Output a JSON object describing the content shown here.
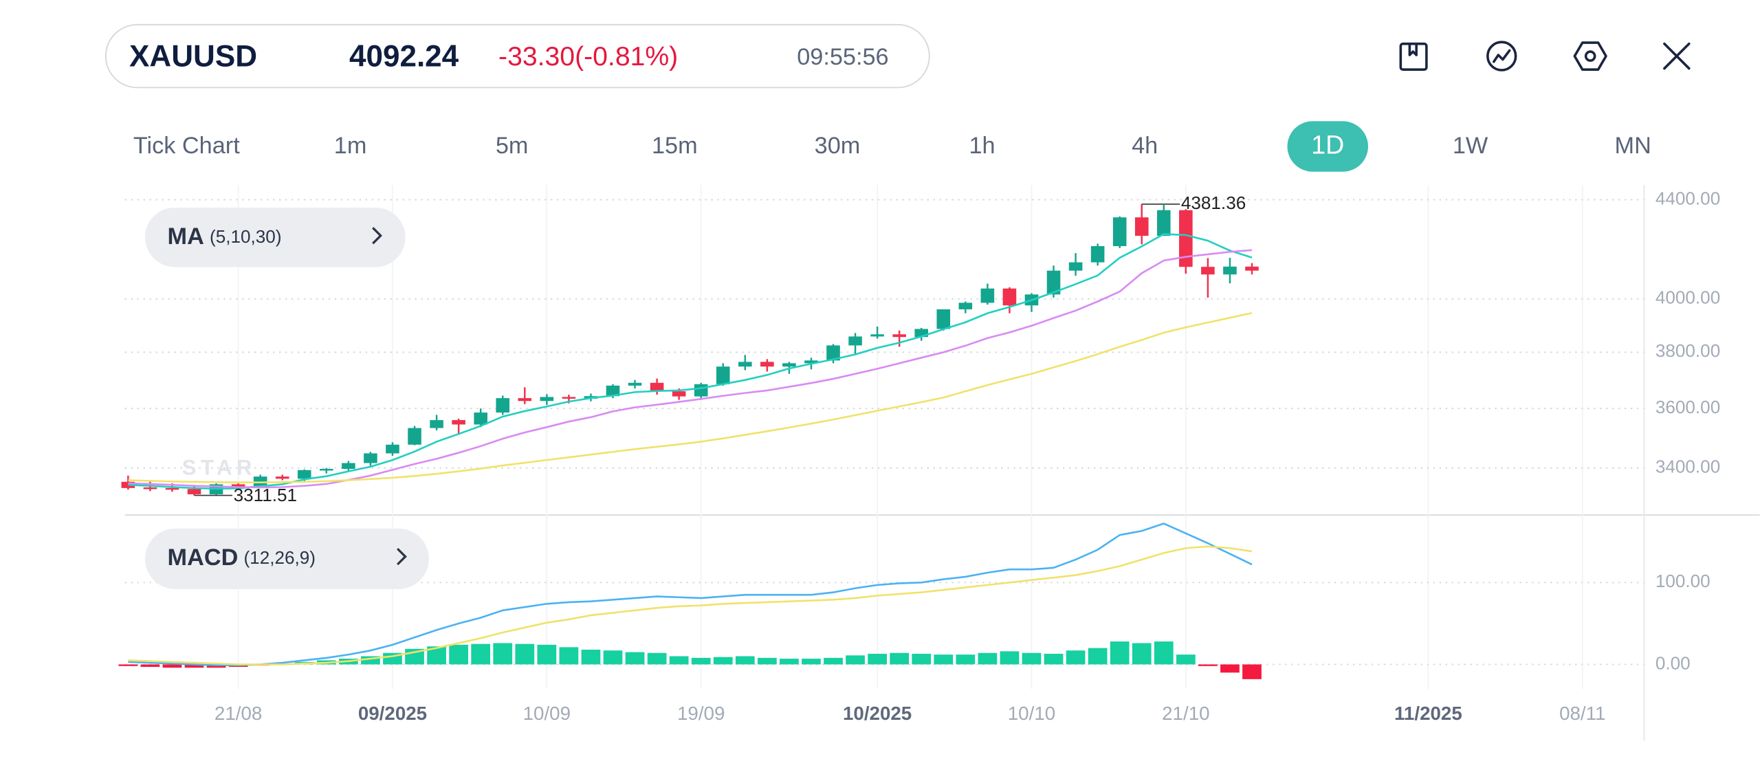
{
  "header": {
    "symbol": "XAUUSD",
    "price": "4092.24",
    "change": "-33.30(-0.81%)",
    "time": "09:55:56"
  },
  "timeframes": [
    "Tick Chart",
    "1m",
    "5m",
    "15m",
    "30m",
    "1h",
    "4h",
    "1D",
    "1W",
    "MN"
  ],
  "selected": "1D",
  "chart_data": [
    {
      "type": "candlestick",
      "watermark": "STAR",
      "name": "MA",
      "params": "(5,10,30)",
      "log": true,
      "grid": true,
      "up_color": "#14a58f",
      "down_color": "#f0304c",
      "ylim": [
        3253,
        4462
      ],
      "yticks": [
        {
          "value": 3400,
          "label": "3400.00"
        },
        {
          "value": 3600,
          "label": "3600.00"
        },
        {
          "value": 3800,
          "label": "3800.00"
        },
        {
          "value": 4000,
          "label": "4000.00"
        },
        {
          "value": 4400,
          "label": "4400.00"
        }
      ],
      "xlim": [
        -0.15,
        68.8
      ],
      "xticks": [
        {
          "value": 5,
          "label": "21/08"
        },
        {
          "value": 12,
          "label": "09/2025"
        },
        {
          "value": 19,
          "label": "10/09"
        },
        {
          "value": 26,
          "label": "19/09"
        },
        {
          "value": 34,
          "label": "10/2025"
        },
        {
          "value": 41,
          "label": "10/10"
        },
        {
          "value": 48,
          "label": "21/10"
        },
        {
          "value": 59,
          "label": "11/2025"
        },
        {
          "value": 66,
          "label": "08/11"
        }
      ],
      "open": [
        3355,
        3337,
        3335,
        3332,
        3315,
        3347,
        3338,
        3372,
        3365,
        3393,
        3397,
        3416,
        3448,
        3477,
        3533,
        3560,
        3545,
        3586,
        3636,
        3626,
        3640,
        3634,
        3643,
        3680,
        3690,
        3660,
        3642,
        3685,
        3748,
        3765,
        3748,
        3760,
        3770,
        3825,
        3858,
        3866,
        3856,
        3886,
        3960,
        3985,
        4040,
        3975,
        4017,
        4110,
        4143,
        4208,
        4326,
        4250,
        4356,
        4125,
        4095,
        4126
      ],
      "high": [
        3375,
        3358,
        3350,
        3345,
        3350,
        3350,
        3378,
        3378,
        3395,
        3400,
        3423,
        3453,
        3485,
        3540,
        3578,
        3565,
        3600,
        3645,
        3674,
        3650,
        3648,
        3652,
        3685,
        3700,
        3705,
        3670,
        3690,
        3760,
        3790,
        3775,
        3765,
        3780,
        3830,
        3871,
        3895,
        3880,
        3890,
        3960,
        3990,
        4059,
        4045,
        4022,
        4130,
        4180,
        4218,
        4330,
        4381.36,
        4378,
        4360,
        4160,
        4161,
        4140
      ],
      "low": [
        3330,
        3325,
        3323,
        3311.51,
        3312,
        3332,
        3335,
        3360,
        3352,
        3382,
        3390,
        3405,
        3440,
        3475,
        3525,
        3510,
        3536,
        3578,
        3615,
        3612,
        3618,
        3625,
        3636,
        3670,
        3648,
        3630,
        3630,
        3680,
        3735,
        3730,
        3722,
        3738,
        3760,
        3792,
        3850,
        3820,
        3842,
        3880,
        3945,
        3978,
        3945,
        3950,
        4005,
        4090,
        4130,
        4200,
        4215,
        4250,
        4098,
        4005,
        4060,
        4095
      ],
      "close": [
        3335,
        3336,
        3332,
        3315,
        3347,
        3338,
        3372,
        3365,
        3393,
        3397,
        3416,
        3448,
        3477,
        3533,
        3560,
        3545,
        3586,
        3636,
        3626,
        3640,
        3634,
        3643,
        3680,
        3690,
        3660,
        3642,
        3685,
        3748,
        3765,
        3748,
        3760,
        3770,
        3825,
        3858,
        3866,
        3856,
        3886,
        3960,
        3985,
        4040,
        3975,
        4017,
        4110,
        4143,
        4208,
        4326,
        4250,
        4356,
        4125,
        4095,
        4126,
        4110
      ],
      "series": [
        {
          "color": "#22cfc0",
          "values": [
            3345,
            3342,
            3338,
            3335,
            3333,
            3334,
            3341,
            3347,
            3363,
            3373,
            3389,
            3404,
            3426,
            3454,
            3487,
            3513,
            3540,
            3572,
            3591,
            3607,
            3624,
            3636,
            3645,
            3657,
            3661,
            3663,
            3671,
            3685,
            3700,
            3718,
            3741,
            3758,
            3774,
            3792,
            3816,
            3835,
            3858,
            3885,
            3911,
            3945,
            3969,
            3995,
            4025,
            4057,
            4091,
            4161,
            4207,
            4257,
            4253,
            4230,
            4190,
            4162
          ]
        },
        {
          "color": "#d98af2",
          "values": [
            3350,
            3348,
            3345,
            3342,
            3340,
            3338,
            3337,
            3338,
            3342,
            3348,
            3361,
            3375,
            3394,
            3413,
            3430,
            3450,
            3472,
            3497,
            3518,
            3536,
            3555,
            3570,
            3590,
            3604,
            3613,
            3623,
            3633,
            3644,
            3654,
            3663,
            3676,
            3689,
            3704,
            3722,
            3740,
            3760,
            3780,
            3800,
            3824,
            3852,
            3873,
            3898,
            3927,
            3955,
            3990,
            4028,
            4100,
            4150,
            4165,
            4175,
            4185,
            4192
          ]
        },
        {
          "color": "#f0e26a",
          "values": [
            3360,
            3358,
            3356,
            3355,
            3354,
            3353,
            3353,
            3354,
            3355,
            3357,
            3360,
            3364,
            3368,
            3374,
            3381,
            3389,
            3398,
            3408,
            3417,
            3426,
            3435,
            3444,
            3453,
            3462,
            3470,
            3478,
            3487,
            3498,
            3510,
            3522,
            3535,
            3548,
            3562,
            3577,
            3592,
            3607,
            3622,
            3638,
            3660,
            3682,
            3702,
            3722,
            3745,
            3768,
            3793,
            3820,
            3845,
            3872,
            3892,
            3910,
            3928,
            3946
          ]
        }
      ]
    },
    {
      "type": "macd",
      "name": "MACD",
      "params": "(12,26,9)",
      "grid": true,
      "ylim": [
        -30,
        181
      ],
      "yticks": [
        {
          "value": 0,
          "label": "0.00"
        },
        {
          "value": 100,
          "label": "100.00"
        }
      ],
      "up_color": "#16d0a0",
      "down_color": "#f5193f",
      "histogram": [
        -2,
        -3,
        -4,
        -4,
        -4,
        -3,
        -1,
        1,
        3,
        5,
        7,
        10,
        14,
        19,
        22,
        24,
        25,
        26,
        25,
        24,
        21,
        18,
        17,
        15,
        14,
        10,
        8,
        9,
        10,
        8,
        7,
        7,
        8,
        11,
        13,
        14,
        13,
        12,
        12,
        14,
        16,
        14,
        13,
        17,
        20,
        28,
        26,
        28,
        12,
        -2,
        -10,
        -18
      ],
      "series": [
        {
          "color": "#4ab2f2",
          "values": [
            3,
            2,
            1,
            0,
            -1,
            -1,
            0,
            2,
            5,
            8,
            12,
            17,
            24,
            33,
            42,
            50,
            57,
            66,
            70,
            74,
            76,
            77,
            79,
            81,
            83,
            82,
            81,
            83,
            85,
            85,
            85,
            85,
            88,
            93,
            97,
            99,
            100,
            104,
            107,
            112,
            116,
            116,
            118,
            128,
            140,
            158,
            163,
            172,
            160,
            148,
            135,
            122
          ]
        },
        {
          "color": "#f0e26a",
          "values": [
            5,
            4,
            3,
            2,
            1,
            0,
            0,
            0,
            1,
            2,
            4,
            7,
            10,
            15,
            20,
            26,
            32,
            39,
            45,
            51,
            55,
            60,
            63,
            66,
            69,
            71,
            72,
            74,
            75,
            76,
            77,
            78,
            79,
            81,
            84,
            86,
            88,
            91,
            94,
            97,
            100,
            103,
            106,
            109,
            114,
            120,
            128,
            136,
            142,
            144,
            142,
            138
          ]
        }
      ]
    }
  ]
}
